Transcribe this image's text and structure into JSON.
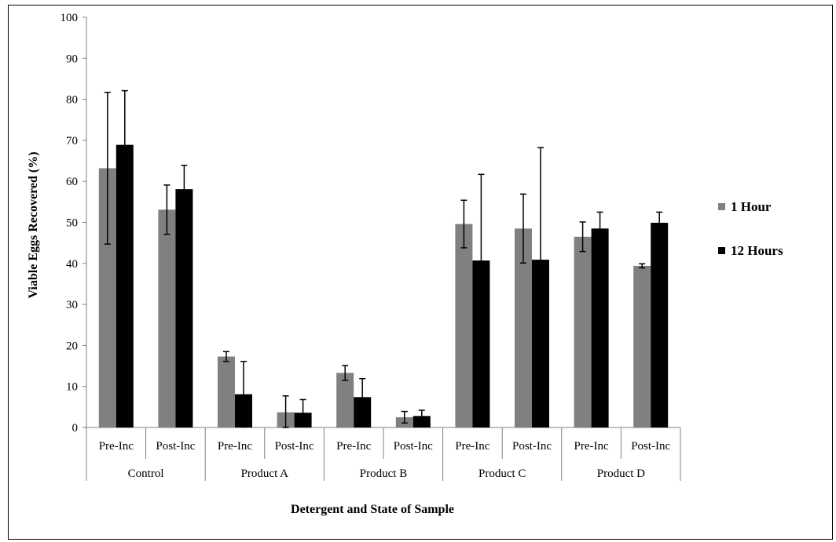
{
  "chart_data": {
    "type": "bar",
    "ylabel": "Viable  Eggs Recovered (%)",
    "xlabel": "Detergent and State of Sample",
    "ylim": [
      0,
      100
    ],
    "y_ticks": [
      0,
      10,
      20,
      30,
      40,
      50,
      60,
      70,
      80,
      90,
      100
    ],
    "grid": false,
    "legend_position": "right",
    "groups": [
      "Control",
      "Product A",
      "Product B",
      "Product C",
      "Product D"
    ],
    "categories": [
      "Pre-Inc",
      "Post-Inc",
      "Pre-Inc",
      "Post-Inc",
      "Pre-Inc",
      "Post-Inc",
      "Pre-Inc",
      "Post-Inc",
      "Pre-Inc",
      "Post-Inc"
    ],
    "series": [
      {
        "name": "1 Hour",
        "color": "#808080",
        "values": [
          63.2,
          53.1,
          17.3,
          3.7,
          13.3,
          2.5,
          49.6,
          48.5,
          46.5,
          39.4
        ],
        "errors": [
          18.5,
          6,
          1.2,
          4.0,
          1.8,
          1.4,
          5.8,
          8.4,
          3.6,
          0.5
        ]
      },
      {
        "name": "12 Hours",
        "color": "#000000",
        "values": [
          68.9,
          58.1,
          8.1,
          3.6,
          7.4,
          2.8,
          40.7,
          40.9,
          48.5,
          49.9
        ],
        "errors": [
          13.2,
          5.8,
          8.0,
          3.2,
          4.5,
          1.4,
          21.0,
          27.3,
          4.0,
          2.6
        ]
      }
    ]
  }
}
